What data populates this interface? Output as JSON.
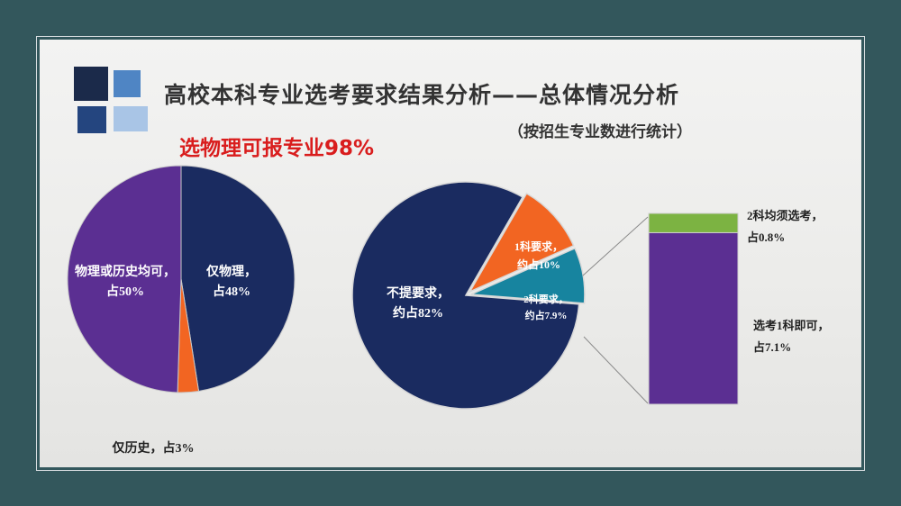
{
  "title": "高校本科专业选考要求结果分析——总体情况分析",
  "subtitle": "（按招生专业数进行统计）",
  "highlight": "选物理可报专业98%",
  "colors": {
    "navy": "#1a2b60",
    "purple": "#5b2f92",
    "orange": "#f26522",
    "teal": "#17849f",
    "green": "#7cb342",
    "highlight_red": "#d91d1d"
  },
  "chart_data": [
    {
      "type": "pie",
      "slices": [
        {
          "label": [
            "仅物理，",
            "占48%"
          ],
          "value": 48,
          "color": "#1a2b60"
        },
        {
          "label": [
            "仅历史，占3%"
          ],
          "value": 3,
          "color": "#f26522"
        },
        {
          "label": [
            "物理或历史均可，",
            "占50%"
          ],
          "value": 50,
          "color": "#5b2f92"
        }
      ]
    },
    {
      "type": "pie",
      "slices": [
        {
          "label": [
            "不提要求，",
            "约占82%"
          ],
          "value": 82,
          "color": "#1a2b60"
        },
        {
          "label": [
            "1科要求，",
            "约占10%"
          ],
          "value": 10,
          "color": "#f26522"
        },
        {
          "label": [
            "2科要求，",
            "约占7.9%"
          ],
          "value": 7.9,
          "color": "#17849f"
        }
      ]
    },
    {
      "type": "bar",
      "stacked": true,
      "segments": [
        {
          "label": [
            "2科均须选考，",
            "占0.8%"
          ],
          "value": 0.8,
          "color": "#7cb342"
        },
        {
          "label": [
            "选考1科即可，",
            "占7.1%"
          ],
          "value": 7.1,
          "color": "#5b2f92"
        }
      ]
    }
  ]
}
